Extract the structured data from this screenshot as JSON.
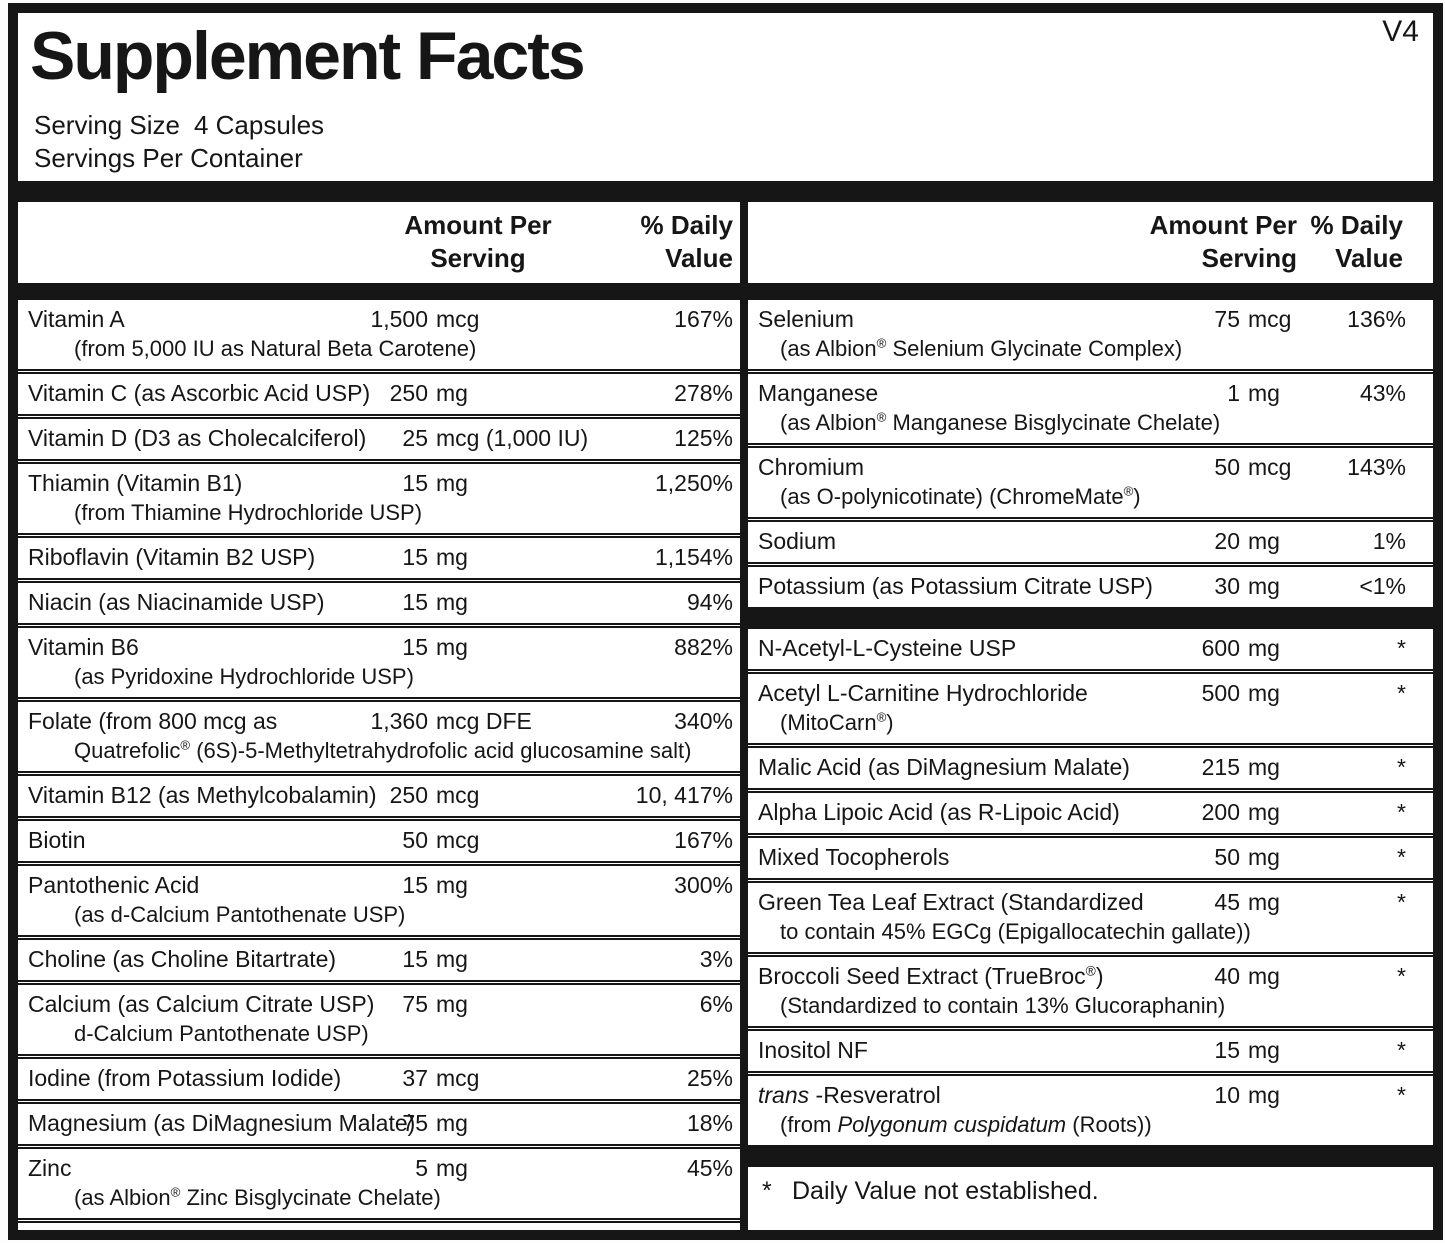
{
  "version": "V4",
  "title": "Supplement Facts",
  "serving": {
    "size_label": "Serving Size",
    "size_value": "4 Capsules",
    "per_container": "Servings Per Container"
  },
  "headers": {
    "amount_line1": "Amount Per",
    "amount_line2": "Serving",
    "dv_line1": "% Daily",
    "dv_line2": "Value"
  },
  "footnote": {
    "symbol": "*",
    "text": "Daily Value not established."
  },
  "left_rows": [
    {
      "name": "Vitamin A",
      "sub": "(from 5,000 IU as Natural Beta Carotene)",
      "amount": "1,500 mcg",
      "dv": "167%"
    },
    {
      "name": "Vitamin C (as Ascorbic Acid USP)",
      "amount": "250 mg",
      "dv": "278%"
    },
    {
      "name": "Vitamin D (D3 as Cholecalciferol)",
      "amount": "25 mcg (1,000 IU)",
      "dv": "125%"
    },
    {
      "name": "Thiamin (Vitamin B1)",
      "sub": "(from Thiamine Hydrochloride USP)",
      "amount": "15 mg",
      "dv": "1,250%"
    },
    {
      "name": "Riboflavin (Vitamin B2 USP)",
      "amount": "15 mg",
      "dv": "1,154%"
    },
    {
      "name": "Niacin (as Niacinamide USP)",
      "amount": "15 mg",
      "dv": "94%"
    },
    {
      "name": "Vitamin B6",
      "sub": "(as Pyridoxine Hydrochloride USP)",
      "amount": "15 mg",
      "dv": "882%"
    },
    {
      "name": "Folate (from 800 mcg as",
      "sub": [
        {
          "t": "Quatrefolic"
        },
        {
          "t": "®",
          "sup": true
        },
        {
          "t": " (6S)-5-Methyltetrahydrofolic acid glucosamine salt)"
        }
      ],
      "amount": "1,360 mcg DFE",
      "dv": "340%"
    },
    {
      "name": "Vitamin B12 (as Methylcobalamin)",
      "amount": "250 mcg",
      "dv": "10, 417%"
    },
    {
      "name": "Biotin",
      "amount": "50 mcg",
      "dv": "167%"
    },
    {
      "name": "Pantothenic Acid",
      "sub": "(as d-Calcium Pantothenate USP)",
      "amount": "15 mg",
      "dv": "300%"
    },
    {
      "name": "Choline (as Choline Bitartrate)",
      "amount": "15 mg",
      "dv": "3%"
    },
    {
      "name": "Calcium (as Calcium Citrate USP)",
      "sub": "d-Calcium Pantothenate USP)",
      "amount": "75 mg",
      "dv": "6%"
    },
    {
      "name": "Iodine (from Potassium Iodide)",
      "amount": "37 mcg",
      "dv": "25%"
    },
    {
      "name": "Magnesium (as DiMagnesium Malate)",
      "amount": "75 mg",
      "dv": "18%"
    },
    {
      "name": "Zinc",
      "sub": [
        {
          "t": "(as Albion"
        },
        {
          "t": "®",
          "sup": true
        },
        {
          "t": " Zinc Bisglycinate Chelate)"
        }
      ],
      "amount": "5 mg",
      "dv": "45%"
    }
  ],
  "right_groups": [
    [
      {
        "name": "Selenium",
        "sub": [
          {
            "t": "(as Albion"
          },
          {
            "t": "®",
            "sup": true
          },
          {
            "t": " Selenium Glycinate Complex)"
          }
        ],
        "amount": "75 mcg",
        "dv": "136%"
      },
      {
        "name": "Manganese",
        "sub": [
          {
            "t": "(as Albion"
          },
          {
            "t": "®",
            "sup": true
          },
          {
            "t": " Manganese Bisglycinate Chelate)"
          }
        ],
        "amount": "1 mg",
        "dv": "43%"
      },
      {
        "name": "Chromium",
        "sub": [
          {
            "t": "(as O-polynicotinate) (ChromeMate"
          },
          {
            "t": "®",
            "sup": true
          },
          {
            "t": ")"
          }
        ],
        "amount": "50 mcg",
        "dv": "143%"
      },
      {
        "name": "Sodium",
        "amount": "20 mg",
        "dv": "1%"
      },
      {
        "name": "Potassium (as Potassium Citrate USP)",
        "amount": "30 mg",
        "dv": "<1%"
      }
    ],
    [
      {
        "name": "N-Acetyl-L-Cysteine USP",
        "amount": "600 mg",
        "dv": "*"
      },
      {
        "name": "Acetyl L-Carnitine Hydrochloride",
        "sub": [
          {
            "t": "(MitoCarn"
          },
          {
            "t": "®",
            "sup": true
          },
          {
            "t": ")"
          }
        ],
        "amount": "500 mg",
        "dv": "*"
      },
      {
        "name": "Malic Acid (as DiMagnesium Malate)",
        "amount": "215 mg",
        "dv": "*"
      },
      {
        "name": "Alpha Lipoic Acid (as R-Lipoic Acid)",
        "amount": "200 mg",
        "dv": "*"
      },
      {
        "name": "Mixed Tocopherols",
        "amount": "50 mg",
        "dv": "*"
      },
      {
        "name": "Green Tea Leaf Extract (Standardized",
        "sub": "to contain 45% EGCg (Epigallocatechin gallate))",
        "amount": "45 mg",
        "dv": "*"
      },
      {
        "name": [
          {
            "t": "Broccoli Seed Extract (TrueBroc"
          },
          {
            "t": "®",
            "sup": true
          },
          {
            "t": ")"
          }
        ],
        "sub": "(Standardized to contain 13% Glucoraphanin)",
        "amount": "40 mg",
        "dv": "*"
      },
      {
        "name": "Inositol NF",
        "amount": "15 mg",
        "dv": "*"
      },
      {
        "name": [
          {
            "t": "trans",
            "i": true
          },
          {
            "t": " -Resveratrol"
          }
        ],
        "sub": [
          {
            "t": "(from "
          },
          {
            "t": "Polygonum cuspidatum",
            "i": true
          },
          {
            "t": " (Roots))"
          }
        ],
        "amount": "10 mg",
        "dv": "*"
      }
    ]
  ]
}
